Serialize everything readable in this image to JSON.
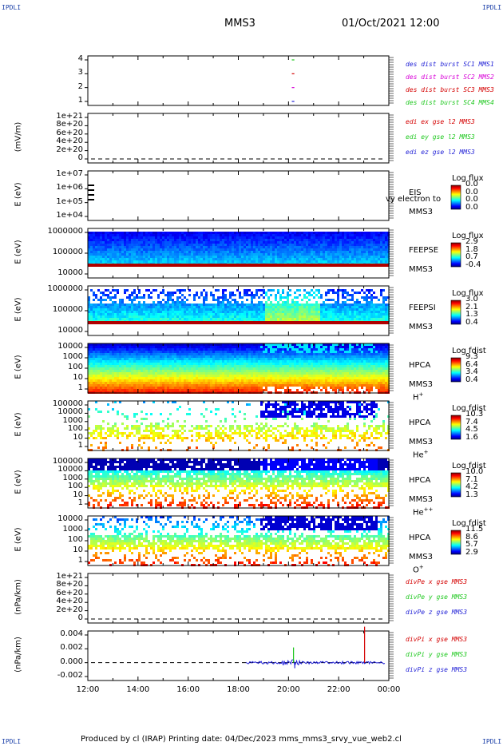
{
  "corners": {
    "tl": "IPDLI",
    "tr": "IPDLI",
    "bl": "IPDLI",
    "br": "IPDLI"
  },
  "header": {
    "spacecraft": "MMS3",
    "datetime": "01/Oct/2021 12:00"
  },
  "footer": {
    "text": "Produced by cl (IRAP)   Printing date: 04/Dec/2023   mms_mms3_srvy_vue_web2.cl"
  },
  "x_ticks": [
    "12:00",
    "14:00",
    "16:00",
    "18:00",
    "20:00",
    "22:00",
    "00:00"
  ],
  "colors": {
    "blue": "#1f1fd6",
    "magenta": "#d800d8",
    "red": "#d40000",
    "green": "#1ec81e"
  },
  "panels": [
    {
      "id": "burst",
      "yticks": [
        "4",
        "3",
        "2",
        "1"
      ],
      "legend": [
        {
          "text": "des dist burst SC1 MMS1",
          "color": "#1f1fd6"
        },
        {
          "text": "des dist burst SC2 MMS2",
          "color": "#d800d8"
        },
        {
          "text": "des dist burst SC3 MMS3",
          "color": "#d40000"
        },
        {
          "text": "des dist burst SC4 MMS4",
          "color": "#1ec81e"
        }
      ]
    },
    {
      "id": "edi",
      "ylabel": "(mV/m)",
      "yticks": [
        "1e+21",
        "8e+20",
        "6e+20",
        "4e+20",
        "2e+20",
        "0"
      ],
      "legend": [
        {
          "text": "edi ex gse l2 MMS3",
          "color": "#d40000"
        },
        {
          "text": "edi ey gse l2 MMS3",
          "color": "#1ec81e"
        },
        {
          "text": "edi ez gse l2 MMS3",
          "color": "#1f1fd6"
        }
      ]
    },
    {
      "id": "eis",
      "ylabel": "E (eV)",
      "yticks": [
        "1e+07",
        "1e+06",
        "1e+05",
        "1e+04"
      ],
      "side": [
        "EIS",
        "MMS3"
      ],
      "overflow_text": "vy electron to",
      "cb_title": "Log flux",
      "cb_vals": [
        "0.0",
        "0.0",
        "0.0",
        "0.0"
      ]
    },
    {
      "id": "feepse",
      "ylabel": "E (eV)",
      "yticks": [
        "1000000",
        "100000",
        "10000"
      ],
      "side": [
        "FEEPSE",
        "MMS3"
      ],
      "cb_title": "Log flux",
      "cb_vals": [
        "2.9",
        "1.8",
        "0.7",
        "-0.4"
      ]
    },
    {
      "id": "feepsi",
      "ylabel": "E (eV)",
      "yticks": [
        "1000000",
        "100000",
        "10000"
      ],
      "side": [
        "FEEPSI",
        "MMS3"
      ],
      "cb_title": "Log flux",
      "cb_vals": [
        "3.0",
        "2.1",
        "1.3",
        "0.4"
      ]
    },
    {
      "id": "hpca_h",
      "ylabel": "E (eV)",
      "yticks": [
        "10000",
        "1000",
        "100",
        "10",
        "1"
      ],
      "side": [
        "HPCA",
        "MMS3"
      ],
      "species": "H",
      "charge": "+",
      "cb_title": "Log fdist",
      "cb_vals": [
        "9.3",
        "6.4",
        "3.4",
        "0.4"
      ]
    },
    {
      "id": "hpca_he",
      "ylabel": "E (eV)",
      "yticks": [
        "100000",
        "10000",
        "1000",
        "100",
        "10",
        "1"
      ],
      "side": [
        "HPCA",
        "MMS3"
      ],
      "species": "He",
      "charge": "+",
      "cb_title": "Log fdist",
      "cb_vals": [
        "10.3",
        "7.4",
        "4.5",
        "1.6"
      ]
    },
    {
      "id": "hpca_hepp",
      "ylabel": "E (eV)",
      "yticks": [
        "100000",
        "10000",
        "1000",
        "100",
        "10",
        "1"
      ],
      "side": [
        "HPCA",
        "MMS3"
      ],
      "species": "He",
      "charge": "++",
      "cb_title": "Log fdist",
      "cb_vals": [
        "10.0",
        "7.1",
        "4.2",
        "1.3"
      ]
    },
    {
      "id": "hpca_o",
      "ylabel": "E (eV)",
      "yticks": [
        "10000",
        "1000",
        "100",
        "10",
        "1"
      ],
      "side": [
        "HPCA",
        "MMS3"
      ],
      "species": "O",
      "charge": "+",
      "cb_title": "Log fdist",
      "cb_vals": [
        "11.5",
        "8.6",
        "5.7",
        "2.9"
      ]
    },
    {
      "id": "divpe",
      "ylabel": "(nPa/km)",
      "yticks": [
        "1e+21",
        "8e+20",
        "6e+20",
        "4e+20",
        "2e+20",
        "0"
      ],
      "legend": [
        {
          "text": "divPe x gse MMS3",
          "color": "#d40000"
        },
        {
          "text": "divPe y gse MMS3",
          "color": "#1ec81e"
        },
        {
          "text": "divPe z gse MMS3",
          "color": "#1f1fd6"
        }
      ]
    },
    {
      "id": "divpi",
      "ylabel": "(nPa/km)",
      "yticks": [
        "0.004",
        "0.002",
        "0.000",
        "-0.002"
      ],
      "legend": [
        {
          "text": "divPi x gse MMS3",
          "color": "#d40000"
        },
        {
          "text": "divPi y gse MMS3",
          "color": "#1ec81e"
        },
        {
          "text": "divPi z gse MMS3",
          "color": "#1f1fd6"
        }
      ]
    }
  ],
  "chart_data": {
    "type": "line",
    "title": "MMS3 01/Oct/2021 12:00",
    "x_range": [
      "12:00",
      "00:00"
    ],
    "burst_marks": [
      {
        "series": "des dist burst SC1 MMS1",
        "y": 1,
        "x_start": "20:08",
        "x_end": "20:14"
      },
      {
        "series": "des dist burst SC2 MMS2",
        "y": 2,
        "x_start": "20:08",
        "x_end": "20:14"
      },
      {
        "series": "des dist burst SC3 MMS3",
        "y": 3,
        "x_start": "20:08",
        "x_end": "20:14"
      },
      {
        "series": "des dist burst SC4 MMS4",
        "y": 4,
        "x_start": "20:08",
        "x_end": "20:14"
      }
    ],
    "divpi_spikes": [
      {
        "series": "divPi x gse MMS3",
        "x": "23:02",
        "y": 0.0052
      },
      {
        "series": "divPi y gse MMS3",
        "x": "20:12",
        "y": 0.0022
      },
      {
        "series": "divPi z gse MMS3",
        "x": "20:15",
        "y": -0.0008
      }
    ]
  }
}
